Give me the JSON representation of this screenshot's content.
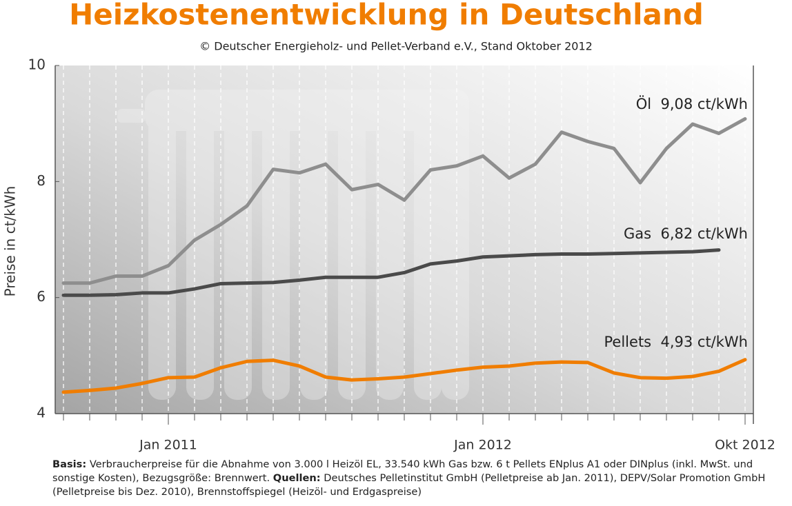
{
  "chart_data": {
    "type": "line",
    "title": "Heizkostenentwicklung in Deutschland",
    "subtitle": "© Deutscher Energieholz- und Pellet-Verband e.V., Stand Oktober 2012",
    "y_label": "Preise in ct/kWh",
    "categories": [
      null,
      null,
      null,
      null,
      "Jan 2011",
      null,
      null,
      null,
      null,
      null,
      null,
      null,
      null,
      null,
      null,
      null,
      "Jan 2012",
      null,
      null,
      null,
      null,
      null,
      null,
      null,
      null,
      null,
      "Okt 2012"
    ],
    "series": [
      {
        "name": "Öl",
        "color": "#8e8e8e",
        "values": [
          6.25,
          6.25,
          6.37,
          6.37,
          6.55,
          6.99,
          7.26,
          7.58,
          8.21,
          8.15,
          8.3,
          7.86,
          7.95,
          7.68,
          8.2,
          8.27,
          8.44,
          8.06,
          8.3,
          8.85,
          8.69,
          8.57,
          7.98,
          8.57,
          8.99,
          8.83,
          9.08
        ]
      },
      {
        "name": "Gas",
        "color": "#4a4a4a",
        "values": [
          6.04,
          6.04,
          6.05,
          6.08,
          6.08,
          6.15,
          6.24,
          6.25,
          6.26,
          6.3,
          6.35,
          6.35,
          6.35,
          6.43,
          6.58,
          6.63,
          6.7,
          6.72,
          6.74,
          6.75,
          6.75,
          6.76,
          6.77,
          6.78,
          6.79,
          6.82,
          null
        ]
      },
      {
        "name": "Pellets",
        "color": "#f07d00",
        "values": [
          4.37,
          4.4,
          4.44,
          4.52,
          4.62,
          4.63,
          4.79,
          4.9,
          4.92,
          4.82,
          4.63,
          4.58,
          4.6,
          4.63,
          4.69,
          4.75,
          4.8,
          4.82,
          4.87,
          4.89,
          4.88,
          4.7,
          4.62,
          4.61,
          4.64,
          4.73,
          4.93
        ]
      }
    ],
    "annotations": [
      "Öl  9,08 ct/kWh",
      "Gas  6,82 ct/kWh",
      "Pellets  4,93 ct/kWh"
    ],
    "ylim": [
      4,
      10
    ],
    "yticks": [
      4,
      6,
      8,
      10
    ],
    "grid": true
  },
  "footnote": {
    "basis_label": "Basis:",
    "basis": "Verbraucherpreise für die Abnahme von 3.000 l Heizöl EL, 33.540 kWh Gas bzw. 6 t Pellets ENplus A1 oder DINplus (inkl. MwSt. und sonstige Kosten), Bezugsgröße: Brennwert.",
    "sources_label": "Quellen:",
    "sources": "Deutsches Pelletinstitut GmbH (Pelletpreise ab Jan. 2011), DEPV/Solar Promotion GmbH (Pelletpreise bis Dez. 2010), Brennstoffspiegel (Heizöl- und Erdgaspreise)"
  }
}
